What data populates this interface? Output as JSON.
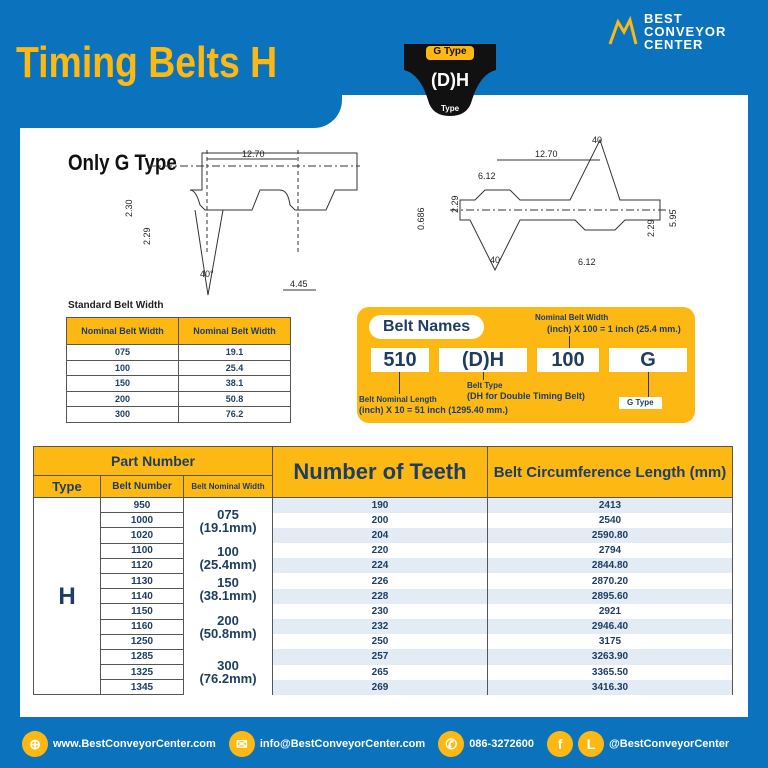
{
  "header": {
    "title": "Timing Belts H",
    "logo_line1": "BEST",
    "logo_line2": "CONVEYOR",
    "logo_line3": "CENTER"
  },
  "badge": {
    "top": "G Type",
    "main": "(D)H",
    "bottom": "Type"
  },
  "diagram_single": {
    "heading": "Only G Type",
    "pitch": "12.70",
    "height_total": "2.30",
    "tooth_height": "2.29",
    "angle": "40°",
    "tooth_width": "4.45"
  },
  "diagram_double": {
    "pitch": "12.70",
    "tooth_width_top": "6.12",
    "tooth_width_bottom": "6.12",
    "tooth_height_top": "2.29",
    "tooth_height_bottom": "2.29",
    "backing": "0.686",
    "total": "5.95",
    "angle_top": "40",
    "angle_bottom": "40"
  },
  "standard_width": {
    "title": "Standard Belt Width",
    "headers": [
      "Nominal Belt Width",
      "Nominal Belt Width"
    ],
    "rows": [
      [
        "075",
        "19.1"
      ],
      [
        "100",
        "25.4"
      ],
      [
        "150",
        "38.1"
      ],
      [
        "200",
        "50.8"
      ],
      [
        "300",
        "76.2"
      ]
    ]
  },
  "belt_names": {
    "title": "Belt Names",
    "codes": [
      "510",
      "(D)H",
      "100",
      "G"
    ],
    "width_note_title": "Nominal Belt Width",
    "width_note": "(inch) X 100 = 1 inch (25.4 mm.)",
    "length_note_title": "Belt Nominal Length",
    "length_note": "(inch) X 10 = 51 inch (1295.40 mm.)",
    "type_note_title": "Belt Type",
    "type_note": "(DH for Double Timing Belt)",
    "g_note": "G Type"
  },
  "table": {
    "headers": {
      "part_number": "Part Number",
      "type": "Type",
      "belt_number": "Belt Number",
      "nominal_width": "Belt Nominal Width",
      "teeth": "Number of Teeth",
      "length": "Belt Circumference Length (mm)"
    },
    "type_value": "H",
    "width_groups": [
      {
        "w": "075",
        "mm": "(19.1mm)"
      },
      {
        "w": "100",
        "mm": "(25.4mm)"
      },
      {
        "w": "150",
        "mm": "(38.1mm)"
      },
      {
        "w": "200",
        "mm": "(50.8mm)"
      },
      {
        "w": "300",
        "mm": "(76.2mm)"
      }
    ],
    "rows": [
      [
        "950",
        "190",
        "2413"
      ],
      [
        "1000",
        "200",
        "2540"
      ],
      [
        "1020",
        "204",
        "2590.80"
      ],
      [
        "1100",
        "220",
        "2794"
      ],
      [
        "1120",
        "224",
        "2844.80"
      ],
      [
        "1130",
        "226",
        "2870.20"
      ],
      [
        "1140",
        "228",
        "2895.60"
      ],
      [
        "1150",
        "230",
        "2921"
      ],
      [
        "1160",
        "232",
        "2946.40"
      ],
      [
        "1250",
        "250",
        "3175"
      ],
      [
        "1285",
        "257",
        "3263.90"
      ],
      [
        "1325",
        "265",
        "3365.50"
      ],
      [
        "1345",
        "269",
        "3416.30"
      ]
    ]
  },
  "footer": {
    "website": "www.BestConveyorCenter.com",
    "email": "info@BestConveyorCenter.com",
    "phone": "086-3272600",
    "social": "@BestConveyorCenter",
    "facebook_glyph": "f",
    "line_glyph": "L"
  },
  "colors": {
    "blue": "#0b73bd",
    "yellow": "#fdb813",
    "navy": "#1d3d63"
  }
}
